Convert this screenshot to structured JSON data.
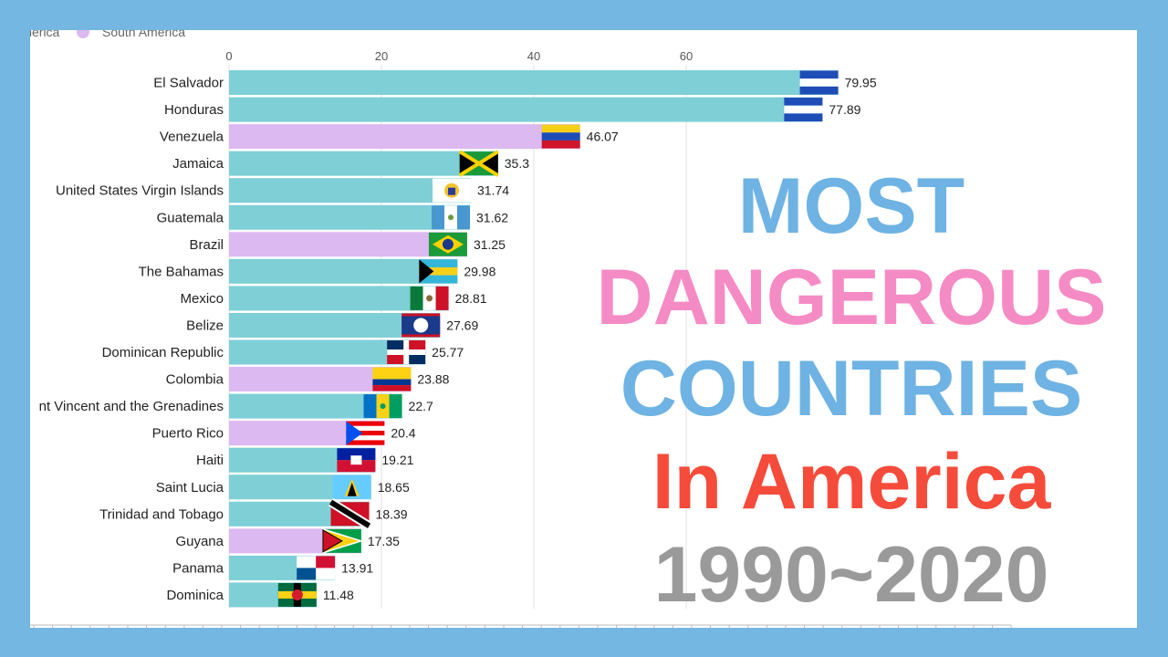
{
  "overlay": {
    "line1": "MOST",
    "line2": "DANGEROUS",
    "line3": "COUNTRIES",
    "line4": "In America",
    "line5": "1990~2020"
  },
  "chart_data": {
    "type": "bar",
    "orientation": "horizontal",
    "title": "",
    "xlabel": "",
    "ylabel": "",
    "xlim": [
      0,
      80
    ],
    "xticks": [
      0,
      20,
      40,
      60
    ],
    "legend": {
      "placement": "top-left",
      "entries": [
        {
          "name": "America",
          "color": "#7ecfd6"
        },
        {
          "name": "South America",
          "color": "#dcb9f0"
        }
      ]
    },
    "categories": [
      "El Salvador",
      "Honduras",
      "Venezuela",
      "Jamaica",
      "United States Virgin Islands",
      "Guatemala",
      "Brazil",
      "The Bahamas",
      "Mexico",
      "Belize",
      "Dominican Republic",
      "Colombia",
      "nt Vincent and the Grenadines",
      "Puerto Rico",
      "Haiti",
      "Saint Lucia",
      "Trinidad and Tobago",
      "Guyana",
      "Panama",
      "Dominica"
    ],
    "values": [
      79.95,
      77.89,
      46.07,
      35.3,
      31.74,
      31.62,
      31.25,
      29.98,
      28.81,
      27.69,
      25.77,
      23.88,
      22.7,
      20.4,
      19.21,
      18.65,
      18.39,
      17.35,
      13.91,
      11.48
    ],
    "value_labels": [
      "79.95",
      "77.89",
      "46.07",
      "35.3",
      "31.74",
      "31.62",
      "31.25",
      "29.98",
      "28.81",
      "27.69",
      "25.77",
      "23.88",
      "22.7",
      "20.4",
      "19.21",
      "18.65",
      "18.39",
      "17.35",
      "13.91",
      "11.48"
    ],
    "groups": [
      "America",
      "America",
      "South America",
      "America",
      "America",
      "America",
      "South America",
      "America",
      "America",
      "America",
      "America",
      "South America",
      "America",
      "South America",
      "America",
      "America",
      "America",
      "South America",
      "America",
      "America"
    ],
    "grid": true
  }
}
